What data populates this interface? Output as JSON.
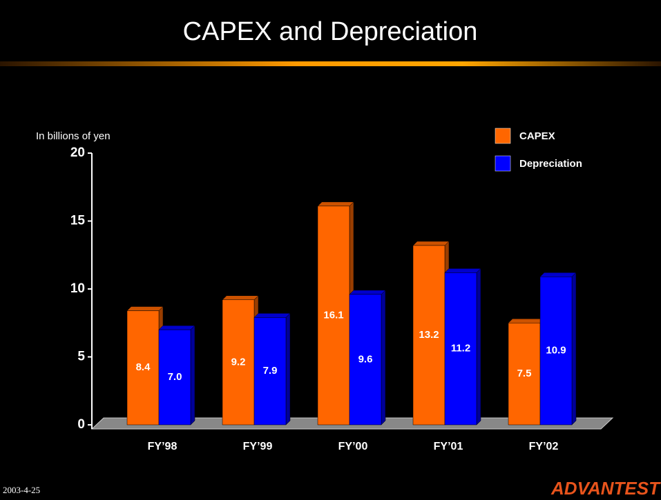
{
  "chart_data": {
    "type": "bar3d",
    "title": "CAPEX and Depreciation",
    "y_axis_label": "In billions of yen",
    "categories": [
      "FY’98",
      "FY’99",
      "FY’00",
      "FY’01",
      "FY’02"
    ],
    "series": [
      {
        "name": "CAPEX",
        "color": "#ff6600",
        "values": [
          8.4,
          9.2,
          16.1,
          13.2,
          7.5
        ],
        "value_labels": [
          "8.4",
          "9.2",
          "16.1",
          "13.2",
          "7.5"
        ]
      },
      {
        "name": "Depreciation",
        "color": "#0000ff",
        "values": [
          7.0,
          7.9,
          9.6,
          11.2,
          10.9
        ],
        "value_labels": [
          "7.0",
          "7.9",
          "9.6",
          "11.2",
          "10.9"
        ]
      }
    ],
    "ylim": [
      0,
      20
    ],
    "yticks": [
      0,
      5,
      10,
      15,
      20
    ],
    "grid": false,
    "legend": "top-right",
    "footer_date": "2003-4-25",
    "logo": "ADVANTEST"
  }
}
